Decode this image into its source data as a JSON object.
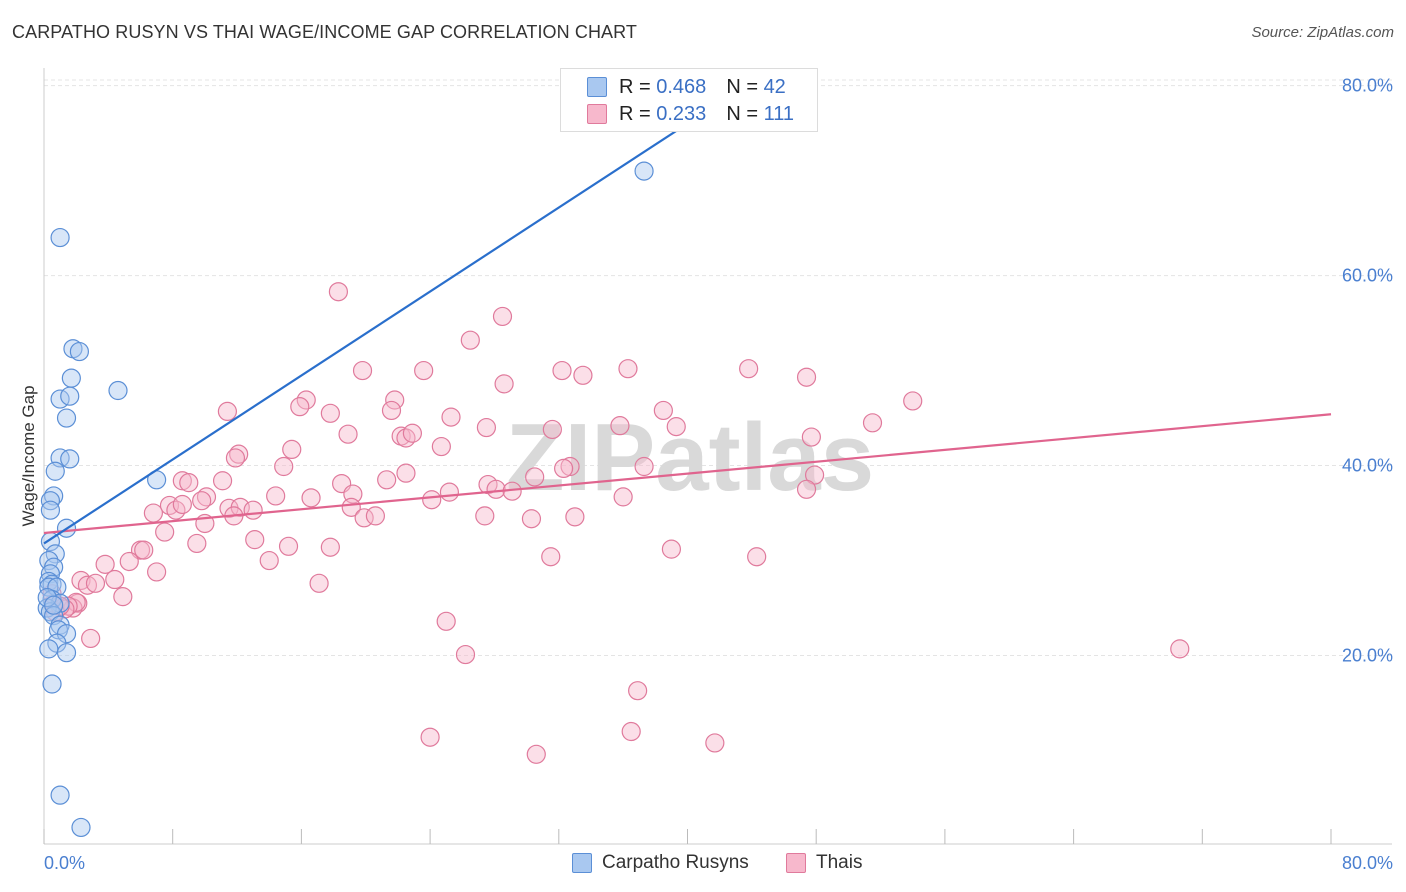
{
  "title": "CARPATHO RUSYN VS THAI WAGE/INCOME GAP CORRELATION CHART",
  "source": "Source: ZipAtlas.com",
  "watermark": "ZIPatlas",
  "colors": {
    "blue_fill": "#a9c8f0",
    "blue_stroke": "#5b8fd6",
    "blue_line": "#2a6fcc",
    "pink_fill": "#f7b8cc",
    "pink_stroke": "#e07a9c",
    "pink_line": "#e0648e",
    "axis_text": "#4a7fd0",
    "grid": "#e4e4e4"
  },
  "legend": {
    "rows": [
      {
        "r_label": "R = ",
        "r_value": "0.468",
        "n_label": "N = ",
        "n_value": "42"
      },
      {
        "r_label": "R = ",
        "r_value": "0.233",
        "n_label": "N = ",
        "n_value": "111"
      }
    ]
  },
  "bottom_legend": {
    "series1": "Carpatho Rusyns",
    "series2": "Thais"
  },
  "chart_data": {
    "type": "scatter",
    "title": "CARPATHO RUSYN VS THAI WAGE/INCOME GAP CORRELATION CHART",
    "xlabel": "",
    "ylabel": "Wage/Income Gap",
    "xlim": [
      0,
      80
    ],
    "ylim": [
      0,
      82
    ],
    "x_tick_labels": [
      "0.0%",
      "80.0%"
    ],
    "y_ticks": [
      20,
      40,
      60,
      80
    ],
    "y_tick_labels": [
      "20.0%",
      "40.0%",
      "60.0%",
      "80.0%"
    ],
    "grid": true,
    "series": [
      {
        "name": "Carpatho Rusyns",
        "R": 0.468,
        "N": 42,
        "trend": {
          "x": [
            0,
            40.0
          ],
          "y": [
            31.8,
            76.0
          ]
        },
        "points": [
          [
            37.3,
            71.0
          ],
          [
            1.0,
            64.0
          ],
          [
            1.8,
            52.3
          ],
          [
            2.2,
            52.0
          ],
          [
            1.7,
            49.2
          ],
          [
            4.6,
            47.9
          ],
          [
            1.0,
            47.0
          ],
          [
            1.6,
            47.3
          ],
          [
            1.4,
            45.0
          ],
          [
            1.0,
            40.8
          ],
          [
            1.6,
            40.7
          ],
          [
            0.7,
            39.4
          ],
          [
            7.0,
            38.5
          ],
          [
            0.6,
            36.8
          ],
          [
            0.4,
            36.3
          ],
          [
            0.4,
            35.3
          ],
          [
            1.4,
            33.4
          ],
          [
            0.4,
            32.0
          ],
          [
            0.7,
            30.7
          ],
          [
            0.3,
            30.0
          ],
          [
            0.6,
            29.3
          ],
          [
            0.4,
            28.6
          ],
          [
            0.3,
            27.8
          ],
          [
            0.5,
            27.5
          ],
          [
            0.3,
            27.2
          ],
          [
            0.8,
            27.2
          ],
          [
            0.5,
            25.9
          ],
          [
            1.0,
            25.5
          ],
          [
            0.2,
            25.0
          ],
          [
            0.4,
            24.6
          ],
          [
            0.6,
            24.2
          ],
          [
            1.0,
            23.2
          ],
          [
            0.9,
            22.7
          ],
          [
            1.4,
            22.3
          ],
          [
            0.8,
            21.3
          ],
          [
            0.3,
            20.7
          ],
          [
            1.4,
            20.3
          ],
          [
            0.5,
            17.0
          ],
          [
            1.0,
            5.3
          ],
          [
            2.3,
            1.9
          ],
          [
            0.2,
            26.1
          ],
          [
            0.6,
            25.3
          ]
        ]
      },
      {
        "name": "Thais",
        "R": 0.233,
        "N": 111,
        "trend": {
          "x": [
            0,
            80
          ],
          "y": [
            32.9,
            45.4
          ]
        },
        "points": [
          [
            18.3,
            58.3
          ],
          [
            28.5,
            55.7
          ],
          [
            26.5,
            53.2
          ],
          [
            19.8,
            50.0
          ],
          [
            23.6,
            50.0
          ],
          [
            32.2,
            50.0
          ],
          [
            36.3,
            50.2
          ],
          [
            43.8,
            50.2
          ],
          [
            28.6,
            48.6
          ],
          [
            33.5,
            49.5
          ],
          [
            47.4,
            49.3
          ],
          [
            21.8,
            46.9
          ],
          [
            16.3,
            46.9
          ],
          [
            15.9,
            46.2
          ],
          [
            17.8,
            45.5
          ],
          [
            21.6,
            45.8
          ],
          [
            11.4,
            45.7
          ],
          [
            25.3,
            45.1
          ],
          [
            38.5,
            45.8
          ],
          [
            54.0,
            46.8
          ],
          [
            51.5,
            44.5
          ],
          [
            39.3,
            44.1
          ],
          [
            35.8,
            44.2
          ],
          [
            27.5,
            44.0
          ],
          [
            31.6,
            43.8
          ],
          [
            18.9,
            43.3
          ],
          [
            22.2,
            43.1
          ],
          [
            22.5,
            42.9
          ],
          [
            22.9,
            43.4
          ],
          [
            47.7,
            43.0
          ],
          [
            24.7,
            42.0
          ],
          [
            15.4,
            41.7
          ],
          [
            12.1,
            41.2
          ],
          [
            11.9,
            40.8
          ],
          [
            14.9,
            39.9
          ],
          [
            32.7,
            39.9
          ],
          [
            32.3,
            39.7
          ],
          [
            37.3,
            39.9
          ],
          [
            47.9,
            39.0
          ],
          [
            30.5,
            38.8
          ],
          [
            21.3,
            38.5
          ],
          [
            22.5,
            39.2
          ],
          [
            8.6,
            38.4
          ],
          [
            11.1,
            38.4
          ],
          [
            18.5,
            38.1
          ],
          [
            9.0,
            38.2
          ],
          [
            27.6,
            38.0
          ],
          [
            10.1,
            36.7
          ],
          [
            19.2,
            37.0
          ],
          [
            25.2,
            37.2
          ],
          [
            28.1,
            37.5
          ],
          [
            29.1,
            37.3
          ],
          [
            47.4,
            37.5
          ],
          [
            7.8,
            35.8
          ],
          [
            8.2,
            35.3
          ],
          [
            8.6,
            35.9
          ],
          [
            9.8,
            36.3
          ],
          [
            11.5,
            35.5
          ],
          [
            12.2,
            35.6
          ],
          [
            13.0,
            35.3
          ],
          [
            14.4,
            36.8
          ],
          [
            16.6,
            36.6
          ],
          [
            19.1,
            35.6
          ],
          [
            24.1,
            36.4
          ],
          [
            36.0,
            36.7
          ],
          [
            6.8,
            35.0
          ],
          [
            11.8,
            34.7
          ],
          [
            19.9,
            34.5
          ],
          [
            20.6,
            34.7
          ],
          [
            27.4,
            34.7
          ],
          [
            30.3,
            34.4
          ],
          [
            33.0,
            34.6
          ],
          [
            10.0,
            33.9
          ],
          [
            7.5,
            33.0
          ],
          [
            9.5,
            31.8
          ],
          [
            13.1,
            32.2
          ],
          [
            15.2,
            31.5
          ],
          [
            17.8,
            31.4
          ],
          [
            6.0,
            31.1
          ],
          [
            6.2,
            31.1
          ],
          [
            39.0,
            31.2
          ],
          [
            31.5,
            30.4
          ],
          [
            44.3,
            30.4
          ],
          [
            14.0,
            30.0
          ],
          [
            3.8,
            29.6
          ],
          [
            5.3,
            29.9
          ],
          [
            7.0,
            28.8
          ],
          [
            4.4,
            28.0
          ],
          [
            2.3,
            27.9
          ],
          [
            2.7,
            27.4
          ],
          [
            3.2,
            27.6
          ],
          [
            17.1,
            27.6
          ],
          [
            4.9,
            26.2
          ],
          [
            2.1,
            25.5
          ],
          [
            1.8,
            25.0
          ],
          [
            2.0,
            25.6
          ],
          [
            1.5,
            25.2
          ],
          [
            1.3,
            24.9
          ],
          [
            0.7,
            24.6
          ],
          [
            0.6,
            25.5
          ],
          [
            25.0,
            23.6
          ],
          [
            2.9,
            21.8
          ],
          [
            70.6,
            20.7
          ],
          [
            26.2,
            20.1
          ],
          [
            36.9,
            16.3
          ],
          [
            24.0,
            11.4
          ],
          [
            36.5,
            12.0
          ],
          [
            41.7,
            10.8
          ],
          [
            30.6,
            9.6
          ],
          [
            0.5,
            26.5
          ],
          [
            1.0,
            25.2
          ]
        ]
      }
    ]
  }
}
